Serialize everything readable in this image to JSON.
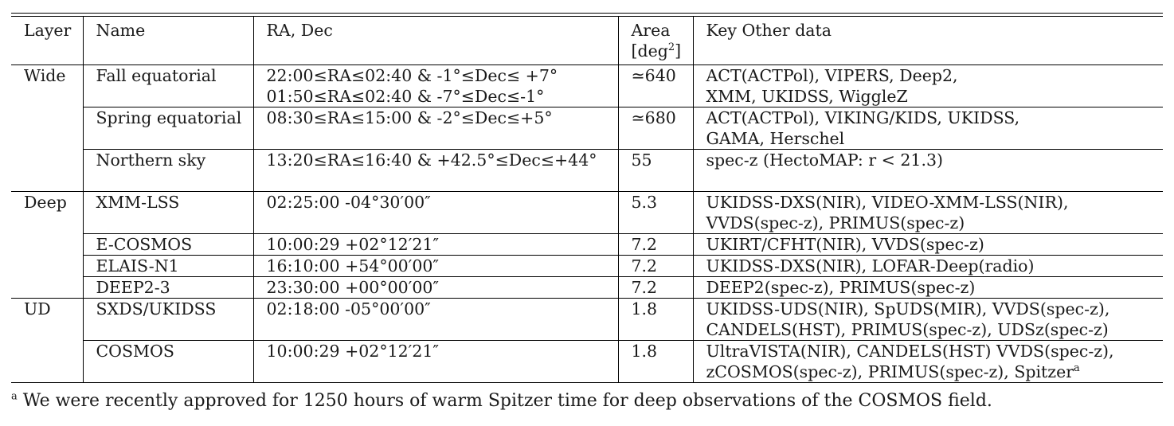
{
  "table": {
    "headers": [
      {
        "lines": [
          "Layer"
        ]
      },
      {
        "lines": [
          "Name"
        ]
      },
      {
        "lines": [
          "RA, Dec"
        ]
      },
      {
        "lines": [
          "Area",
          "[deg²]"
        ]
      },
      {
        "lines": [
          "Key Other data"
        ]
      }
    ],
    "rows": [
      {
        "layer": "Wide",
        "name": "Fall equatorial",
        "radec": [
          "22:00≤RA≤02:40 & -1°≤Dec≤ +7°",
          "01:50≤RA≤02:40 & -7°≤Dec≤-1°"
        ],
        "area": "≃640",
        "other": [
          "ACT(ACTPol), VIPERS, Deep2,",
          "XMM, UKIDSS, WiggleZ"
        ]
      },
      {
        "layer": "",
        "name": "Spring equatorial",
        "radec": [
          "08:30≤RA≤15:00 & -2°≤Dec≤+5°"
        ],
        "area": "≃680",
        "other": [
          "ACT(ACTPol), VIKING/KIDS, UKIDSS,",
          "GAMA, Herschel"
        ]
      },
      {
        "layer": "",
        "name": "Northern sky",
        "radec": [
          "13:20≤RA≤16:40 & +42.5°≤Dec≤+44°",
          ""
        ],
        "area": "55",
        "other": [
          "spec-z (HectoMAP: r < 21.3)",
          ""
        ]
      },
      {
        "layer": "Deep",
        "name": "XMM-LSS",
        "radec": [
          "02:25:00 -04°30′00″"
        ],
        "area": "5.3",
        "other": [
          "UKIDSS-DXS(NIR), VIDEO-XMM-LSS(NIR),",
          "VVDS(spec-z), PRIMUS(spec-z)"
        ]
      },
      {
        "layer": "",
        "name": "E-COSMOS",
        "radec": [
          "10:00:29 +02°12′21″"
        ],
        "area": "7.2",
        "other": [
          "UKIRT/CFHT(NIR), VVDS(spec-z)"
        ]
      },
      {
        "layer": "",
        "name": "ELAIS-N1",
        "radec": [
          "16:10:00 +54°00′00″"
        ],
        "area": "7.2",
        "other": [
          "UKIDSS-DXS(NIR), LOFAR-Deep(radio)"
        ]
      },
      {
        "layer": "",
        "name": "DEEP2-3",
        "radec": [
          "23:30:00 +00°00′00″"
        ],
        "area": "7.2",
        "other": [
          "DEEP2(spec-z), PRIMUS(spec-z)"
        ]
      },
      {
        "layer": "UD",
        "name": "SXDS/UKIDSS",
        "radec": [
          "02:18:00 -05°00′00″"
        ],
        "area": "1.8",
        "other": [
          "UKIDSS-UDS(NIR), SpUDS(MIR), VVDS(spec-z),",
          "CANDELS(HST), PRIMUS(spec-z), UDSz(spec-z)"
        ]
      },
      {
        "layer": "",
        "name": "COSMOS",
        "radec": [
          "10:00:29 +02°12′21″"
        ],
        "area": "1.8",
        "other": [
          "UltraVISTA(NIR), CANDELS(HST) VVDS(spec-z),",
          "zCOSMOS(spec-z), PRIMUS(spec-z), Spitzer"
        ],
        "other_sup": "a"
      }
    ]
  },
  "footnote": {
    "marker": "a",
    "text": "We were recently approved for 1250 hours of warm Spitzer time for deep observations of the COSMOS field."
  }
}
